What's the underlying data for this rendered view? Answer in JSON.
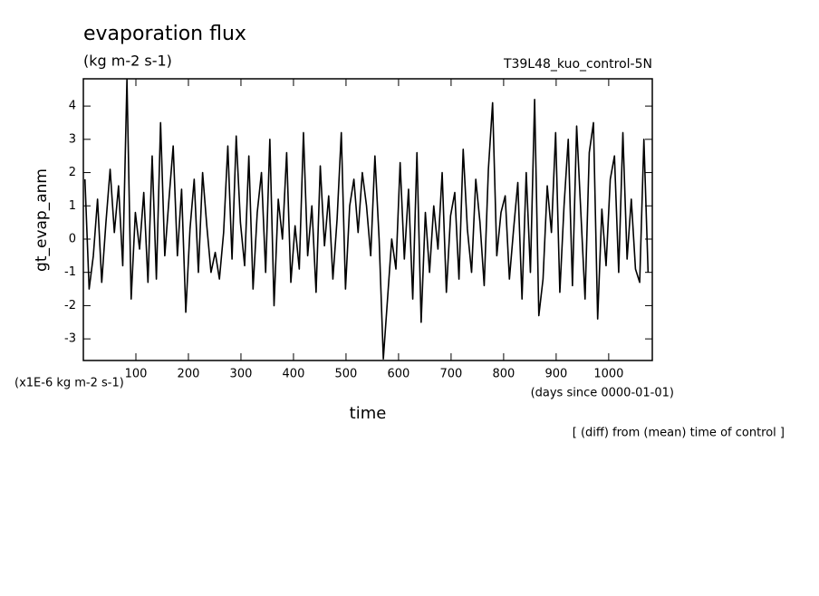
{
  "chart_data": {
    "type": "line",
    "title": "evaporation flux",
    "subtitle": "(kg m-2 s-1)",
    "run_label": "T39L48_kuo_control-5N",
    "y_label": "gt_evap_anm",
    "x_label": "time",
    "y_scale_note": "(x1E-6 kg m-2 s-1)",
    "x_units": "(days since 0000-01-01)",
    "footnote": "[ (diff) from (mean) time of control ]",
    "color": "#000000",
    "xlim": [
      0,
      1083
    ],
    "ylim": [
      -3.65,
      4.82
    ],
    "xticks": [
      100,
      200,
      300,
      400,
      500,
      600,
      700,
      800,
      900,
      1000
    ],
    "yticks": [
      -3,
      -2,
      -1,
      0,
      1,
      2,
      3,
      4
    ],
    "x": [
      3,
      11,
      19,
      27,
      35,
      43,
      51,
      59,
      67,
      75,
      83,
      91,
      99,
      107,
      115,
      123,
      131,
      139,
      147,
      155,
      163,
      171,
      179,
      187,
      195,
      203,
      211,
      219,
      227,
      235,
      243,
      251,
      259,
      267,
      275,
      283,
      291,
      299,
      307,
      315,
      323,
      331,
      339,
      347,
      355,
      363,
      371,
      379,
      387,
      395,
      403,
      411,
      419,
      427,
      435,
      443,
      451,
      459,
      467,
      475,
      483,
      491,
      499,
      507,
      515,
      523,
      531,
      539,
      547,
      555,
      563,
      571,
      579,
      587,
      595,
      603,
      611,
      619,
      627,
      635,
      643,
      651,
      659,
      667,
      675,
      683,
      691,
      699,
      707,
      715,
      723,
      731,
      739,
      747,
      755,
      763,
      771,
      779,
      787,
      795,
      803,
      811,
      819,
      827,
      835,
      843,
      851,
      859,
      867,
      875,
      883,
      891,
      899,
      907,
      915,
      923,
      931,
      939,
      947,
      955,
      963,
      971,
      979,
      987,
      995,
      1003,
      1011,
      1019,
      1027,
      1035,
      1043,
      1051,
      1059,
      1067,
      1075
    ],
    "values": [
      1.8,
      -1.5,
      -0.5,
      1.2,
      -1.3,
      0.5,
      2.1,
      0.2,
      1.6,
      -0.8,
      4.8,
      -1.8,
      0.8,
      -0.3,
      1.4,
      -1.3,
      2.5,
      -1.2,
      3.5,
      -0.5,
      1.2,
      2.8,
      -0.5,
      1.5,
      -2.2,
      0.3,
      1.8,
      -1.0,
      2.0,
      0.4,
      -1.0,
      -0.4,
      -1.2,
      0.2,
      2.8,
      -0.6,
      3.1,
      0.5,
      -0.8,
      2.5,
      -1.5,
      0.8,
      2.0,
      -1.0,
      3.0,
      -2.0,
      1.2,
      0.0,
      2.6,
      -1.3,
      0.4,
      -0.9,
      3.2,
      -0.5,
      1.0,
      -1.6,
      2.2,
      -0.2,
      1.3,
      -1.2,
      0.6,
      3.2,
      -1.5,
      1.0,
      1.8,
      0.2,
      2.0,
      1.0,
      -0.5,
      2.5,
      0.0,
      -3.6,
      -1.8,
      0.0,
      -0.9,
      2.3,
      -0.6,
      1.5,
      -1.8,
      2.6,
      -2.5,
      0.8,
      -1.0,
      1.0,
      -0.3,
      2.0,
      -1.6,
      0.7,
      1.4,
      -1.2,
      2.7,
      0.3,
      -1.0,
      1.8,
      0.5,
      -1.4,
      2.1,
      4.1,
      -0.5,
      0.8,
      1.3,
      -1.2,
      0.3,
      1.7,
      -1.8,
      2.0,
      -1.0,
      4.2,
      -2.3,
      -1.2,
      1.6,
      0.2,
      3.2,
      -1.6,
      1.0,
      3.0,
      -1.4,
      3.4,
      0.8,
      -1.8,
      2.6,
      3.5,
      -2.4,
      0.9,
      -0.8,
      1.8,
      2.5,
      -1.0,
      3.2,
      -0.6,
      1.2,
      -0.9,
      -1.3,
      3.0,
      -1.0
    ]
  }
}
